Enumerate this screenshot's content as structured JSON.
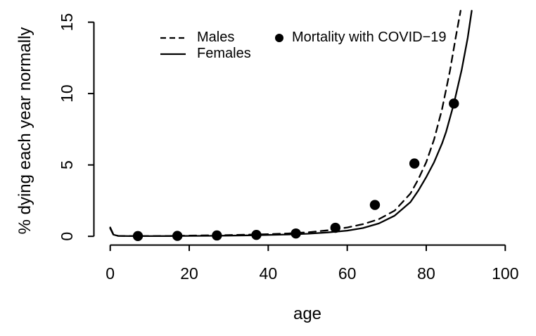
{
  "chart_data": {
    "type": "line",
    "title": "",
    "xlabel": "age",
    "ylabel": "% dying each year normally",
    "xlim": [
      0,
      100
    ],
    "ylim": [
      0,
      15
    ],
    "x_ticks": [
      0,
      20,
      40,
      60,
      80,
      100
    ],
    "y_ticks": [
      0,
      5,
      10,
      15
    ],
    "grid": false,
    "legend_position": "top-center",
    "legend": [
      {
        "label": "Males",
        "marker": "dashed-line"
      },
      {
        "label": "Females",
        "marker": "solid-line"
      },
      {
        "label": "Mortality with COVID−19",
        "marker": "filled-circle"
      }
    ],
    "series": [
      {
        "name": "Males",
        "type": "line",
        "linestyle": "dashed",
        "color": "#000000",
        "points": [
          [
            0,
            0.62
          ],
          [
            0.8,
            0.14
          ],
          [
            2,
            0.035
          ],
          [
            5,
            0.018
          ],
          [
            10,
            0.018
          ],
          [
            15,
            0.03
          ],
          [
            20,
            0.055
          ],
          [
            25,
            0.07
          ],
          [
            30,
            0.09
          ],
          [
            35,
            0.12
          ],
          [
            40,
            0.15
          ],
          [
            45,
            0.2
          ],
          [
            50,
            0.28
          ],
          [
            55,
            0.42
          ],
          [
            60,
            0.62
          ],
          [
            64,
            0.85
          ],
          [
            68,
            1.2
          ],
          [
            72,
            1.8
          ],
          [
            76,
            3.0
          ],
          [
            78,
            4.0
          ],
          [
            80,
            5.2
          ],
          [
            82,
            6.8
          ],
          [
            84,
            8.9
          ],
          [
            86,
            11.6
          ],
          [
            87.5,
            14.0
          ],
          [
            88.7,
            15.8
          ]
        ]
      },
      {
        "name": "Females",
        "type": "line",
        "linestyle": "solid",
        "color": "#000000",
        "points": [
          [
            0,
            0.55
          ],
          [
            0.8,
            0.12
          ],
          [
            2,
            0.03
          ],
          [
            5,
            0.015
          ],
          [
            10,
            0.015
          ],
          [
            15,
            0.02
          ],
          [
            20,
            0.03
          ],
          [
            25,
            0.035
          ],
          [
            30,
            0.05
          ],
          [
            35,
            0.07
          ],
          [
            40,
            0.1
          ],
          [
            45,
            0.13
          ],
          [
            50,
            0.18
          ],
          [
            55,
            0.27
          ],
          [
            60,
            0.4
          ],
          [
            64,
            0.58
          ],
          [
            68,
            0.9
          ],
          [
            72,
            1.45
          ],
          [
            76,
            2.4
          ],
          [
            78,
            3.2
          ],
          [
            80,
            4.15
          ],
          [
            82,
            5.2
          ],
          [
            84,
            6.5
          ],
          [
            85,
            7.3
          ],
          [
            87,
            9.3
          ],
          [
            89,
            11.7
          ],
          [
            90.5,
            13.9
          ],
          [
            91.5,
            15.8
          ]
        ]
      },
      {
        "name": "Mortality with COVID−19",
        "type": "scatter",
        "marker": "filled-circle",
        "color": "#000000",
        "x": [
          7,
          17,
          27,
          37,
          47,
          57,
          67,
          77,
          87
        ],
        "y": [
          0.02,
          0.03,
          0.06,
          0.1,
          0.2,
          0.6,
          2.2,
          5.1,
          9.3
        ]
      }
    ],
    "colors": {
      "foreground": "#000000",
      "background": "#ffffff"
    }
  }
}
